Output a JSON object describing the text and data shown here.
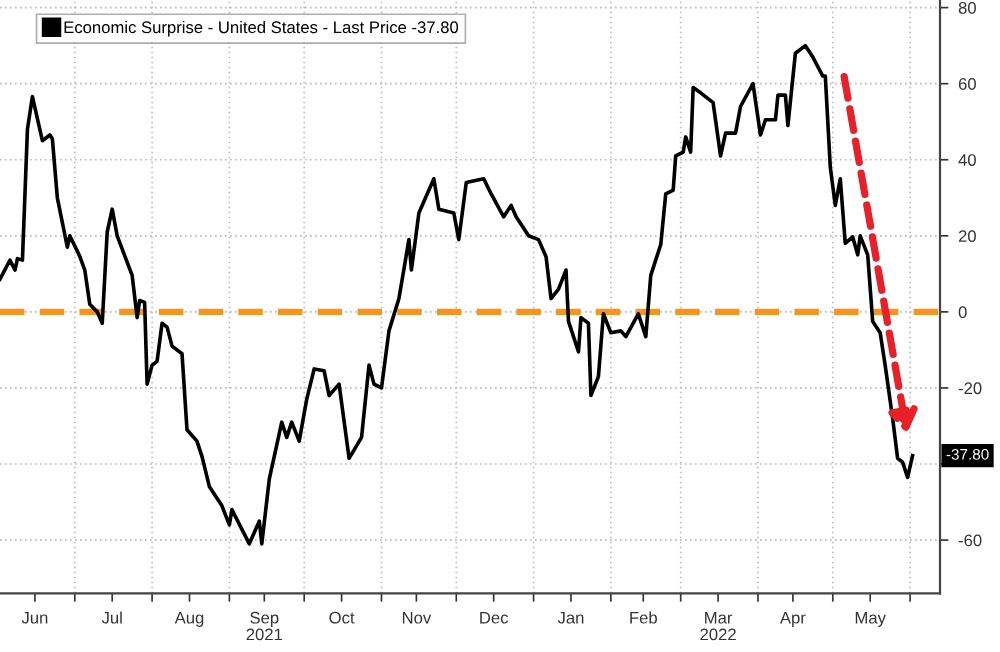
{
  "chart_data": {
    "type": "line",
    "x": [
      "2021-06-01",
      "2021-06-05",
      "2021-06-07",
      "2021-06-08",
      "2021-06-10",
      "2021-06-12",
      "2021-06-14",
      "2021-06-18",
      "2021-06-21",
      "2021-06-22",
      "2021-06-24",
      "2021-06-28",
      "2021-06-29",
      "2021-07-03",
      "2021-07-05",
      "2021-07-07",
      "2021-07-10",
      "2021-07-12",
      "2021-07-14",
      "2021-07-16",
      "2021-07-18",
      "2021-07-24",
      "2021-07-26",
      "2021-07-27",
      "2021-07-29",
      "2021-07-30",
      "2021-08-01",
      "2021-08-03",
      "2021-08-05",
      "2021-08-07",
      "2021-08-09",
      "2021-08-13",
      "2021-08-15",
      "2021-08-19",
      "2021-08-21",
      "2021-08-24",
      "2021-08-29",
      "2021-09-01",
      "2021-09-02",
      "2021-09-09",
      "2021-09-13",
      "2021-09-14",
      "2021-09-17",
      "2021-09-22",
      "2021-09-24",
      "2021-09-26",
      "2021-09-29",
      "2021-10-02",
      "2021-10-05",
      "2021-10-09",
      "2021-10-11",
      "2021-10-15",
      "2021-10-19",
      "2021-10-24",
      "2021-10-27",
      "2021-10-29",
      "2021-11-01",
      "2021-11-04",
      "2021-11-08",
      "2021-11-12",
      "2021-11-13",
      "2021-11-16",
      "2021-11-22",
      "2021-11-24",
      "2021-11-30",
      "2021-12-02",
      "2021-12-05",
      "2021-12-12",
      "2021-12-15",
      "2021-12-20",
      "2021-12-23",
      "2021-12-25",
      "2021-12-30",
      "2022-01-03",
      "2022-01-06",
      "2022-01-08",
      "2022-01-11",
      "2022-01-14",
      "2022-01-15",
      "2022-01-19",
      "2022-01-20",
      "2022-01-23",
      "2022-01-24",
      "2022-01-27",
      "2022-01-29",
      "2022-02-01",
      "2022-02-05",
      "2022-02-07",
      "2022-02-12",
      "2022-02-15",
      "2022-02-17",
      "2022-02-21",
      "2022-02-23",
      "2022-02-26",
      "2022-02-27",
      "2022-03-02",
      "2022-03-03",
      "2022-03-05",
      "2022-03-06",
      "2022-03-09",
      "2022-03-14",
      "2022-03-17",
      "2022-03-19",
      "2022-03-23",
      "2022-03-25",
      "2022-03-30",
      "2022-04-02",
      "2022-04-04",
      "2022-04-08",
      "2022-04-09",
      "2022-04-12",
      "2022-04-13",
      "2022-04-16",
      "2022-04-20",
      "2022-04-23",
      "2022-04-27",
      "2022-04-28",
      "2022-04-30",
      "2022-05-02",
      "2022-05-04",
      "2022-05-06",
      "2022-05-09",
      "2022-05-11",
      "2022-05-12",
      "2022-05-15",
      "2022-05-17",
      "2022-05-20",
      "2022-05-22",
      "2022-05-25",
      "2022-05-27",
      "2022-05-29",
      "2022-05-31",
      "2022-06-02"
    ],
    "series": [
      {
        "name": "Economic Surprise - United States - Last Price -37.80",
        "color": "#000000",
        "values": [
          8.6,
          13.6,
          11,
          14,
          13.6,
          48,
          56.6,
          45,
          46.5,
          45.5,
          30,
          17,
          20,
          14.6,
          11,
          2,
          0,
          -3,
          21,
          27,
          20,
          9.6,
          -1.5,
          3,
          2.5,
          -19,
          -14,
          -13,
          -3,
          -4,
          -9,
          -11,
          -31,
          -34,
          -38,
          -46,
          -51,
          -56,
          -52,
          -61,
          -55,
          -61,
          -44,
          -29,
          -33,
          -29,
          -34,
          -23,
          -15,
          -15.5,
          -22,
          -19,
          -38.5,
          -33,
          -14,
          -19,
          -20,
          -5,
          3.5,
          19,
          11,
          26,
          35,
          27,
          26,
          19,
          34,
          35,
          31,
          25,
          28,
          25,
          20,
          19,
          14.5,
          3.5,
          6,
          11,
          -2.5,
          -10.5,
          -1.5,
          -3,
          -22,
          -17,
          -0.5,
          -5.5,
          -5,
          -6.5,
          -0.5,
          -6.5,
          9.6,
          17.7,
          31,
          32,
          41,
          42,
          46,
          42,
          59,
          57.6,
          55,
          41,
          47,
          47,
          54,
          60,
          46.5,
          50.5,
          50.5,
          57,
          57,
          49,
          68,
          70,
          67,
          62,
          62,
          38,
          28,
          35,
          18,
          19.7,
          15,
          20,
          15,
          -2.5,
          -5.5,
          -14,
          -28,
          -38.5,
          -39.5,
          -43.5,
          -37.8
        ]
      }
    ],
    "xlim": [
      "2021-06-01",
      "2022-06-13"
    ],
    "xticks": [
      {
        "value": "2021-06-15",
        "label": "Jun"
      },
      {
        "value": "2021-07-01",
        "label": null
      },
      {
        "value": "2021-07-16",
        "label": "Jul"
      },
      {
        "value": "2021-08-01",
        "label": null
      },
      {
        "value": "2021-08-16",
        "label": "Aug"
      },
      {
        "value": "2021-09-01",
        "label": null
      },
      {
        "value": "2021-09-15",
        "label": "Sep"
      },
      {
        "value": "2021-10-01",
        "label": null
      },
      {
        "value": "2021-10-16",
        "label": "Oct"
      },
      {
        "value": "2021-11-01",
        "label": null
      },
      {
        "value": "2021-11-15",
        "label": "Nov"
      },
      {
        "value": "2021-12-01",
        "label": null
      },
      {
        "value": "2021-12-16",
        "label": "Dec"
      },
      {
        "value": "2022-01-01",
        "label": null
      },
      {
        "value": "2022-01-16",
        "label": "Jan"
      },
      {
        "value": "2022-02-01",
        "label": null
      },
      {
        "value": "2022-02-14",
        "label": "Feb"
      },
      {
        "value": "2022-03-01",
        "label": null
      },
      {
        "value": "2022-03-16",
        "label": "Mar"
      },
      {
        "value": "2022-04-01",
        "label": null
      },
      {
        "value": "2022-04-15",
        "label": "Apr"
      },
      {
        "value": "2022-05-01",
        "label": null
      },
      {
        "value": "2022-05-16",
        "label": "May"
      },
      {
        "value": "2022-06-01",
        "label": null
      }
    ],
    "x2lim": [
      "2021-06-01",
      "2022-06-13"
    ],
    "x2ticks": [
      {
        "value": "2021-09-15",
        "label": "2021"
      },
      {
        "value": "2022-03-16",
        "label": "2022"
      }
    ],
    "ylim": [
      -74,
      82
    ],
    "yticks": [
      -60,
      {
        "value": -40,
        "label": null
      },
      -20,
      0,
      20,
      40,
      60,
      80
    ],
    "grid": true,
    "legend": "top left",
    "ref_lines": [
      {
        "axis": "y",
        "value": 0,
        "color": "#f7941d",
        "line_style": "dashed"
      }
    ],
    "annotations": [
      {
        "text": "-37.80",
        "x": "2022-06-02",
        "y": -37.8
      }
    ]
  }
}
